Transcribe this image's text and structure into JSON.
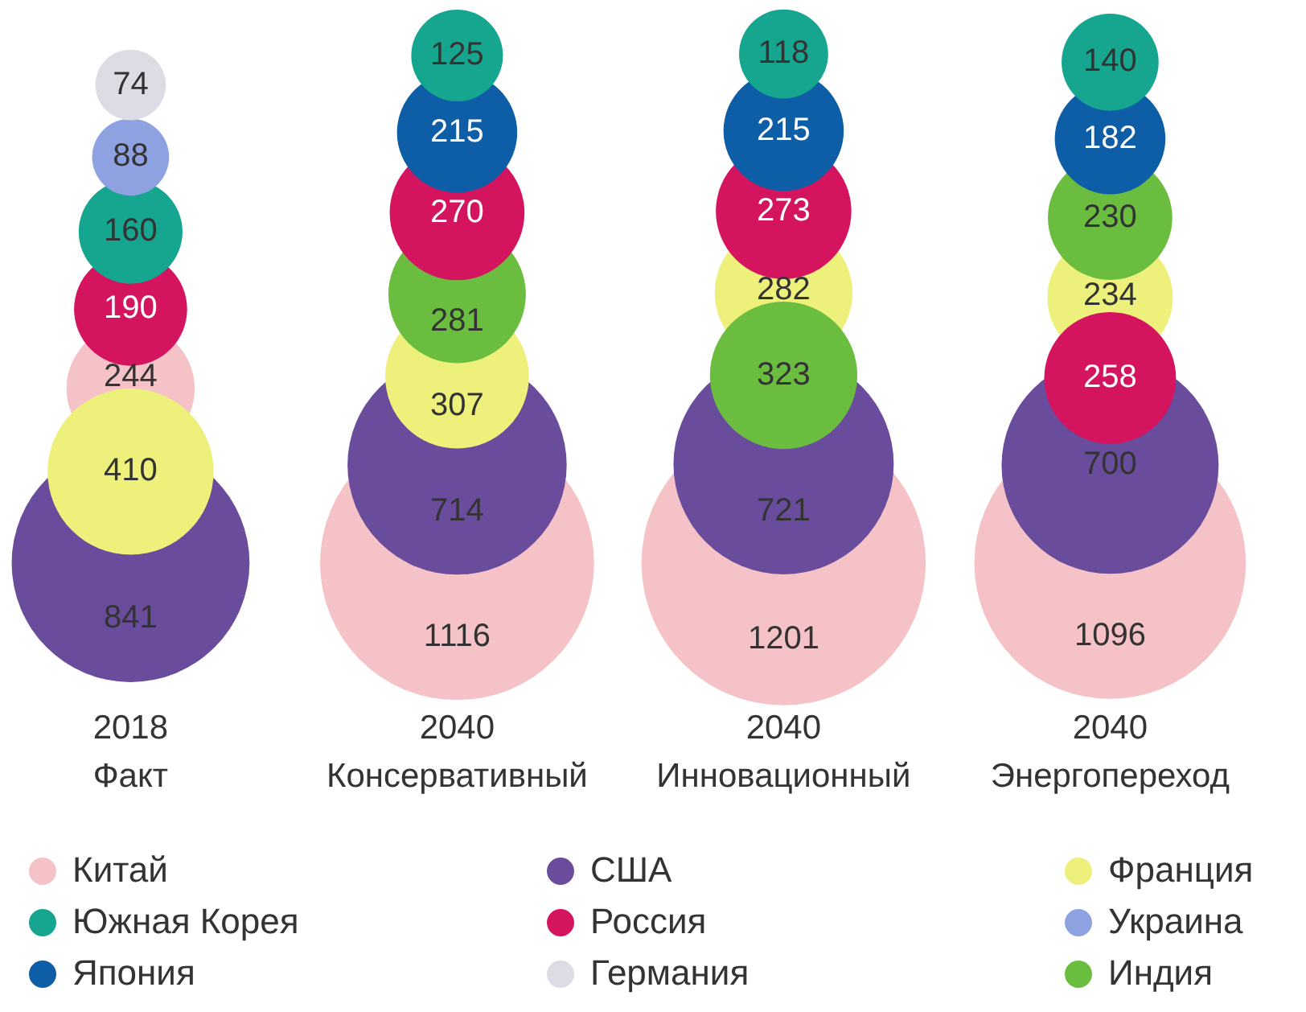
{
  "chart_data": {
    "type": "other",
    "categories": [
      "2018 Факт",
      "2040 Консервативный",
      "2040 Инновационный",
      "2040 Энергопереход"
    ],
    "series": [
      {
        "name": "Китай",
        "color": "#f5c3c7",
        "values": [
          244,
          1116,
          1201,
          1096
        ]
      },
      {
        "name": "США",
        "color": "#6a4c9c",
        "values": [
          841,
          714,
          721,
          700
        ]
      },
      {
        "name": "Франция",
        "color": "#eef07c",
        "values": [
          410,
          307,
          282,
          234
        ]
      },
      {
        "name": "Южная Корея",
        "color": "#16a68f",
        "values": [
          160,
          125,
          118,
          140
        ]
      },
      {
        "name": "Россия",
        "color": "#d5145f",
        "values": [
          190,
          270,
          273,
          258
        ]
      },
      {
        "name": "Украина",
        "color": "#8ea2e2",
        "values": [
          88,
          null,
          null,
          null
        ]
      },
      {
        "name": "Япония",
        "color": "#0d5ea6",
        "values": [
          null,
          215,
          215,
          182
        ]
      },
      {
        "name": "Германия",
        "color": "#dcdce4",
        "values": [
          74,
          null,
          null,
          null
        ]
      },
      {
        "name": "Индия",
        "color": "#6bbd3f",
        "values": [
          null,
          281,
          323,
          230
        ]
      }
    ],
    "data_labels": true,
    "legend": "bottom"
  }
}
